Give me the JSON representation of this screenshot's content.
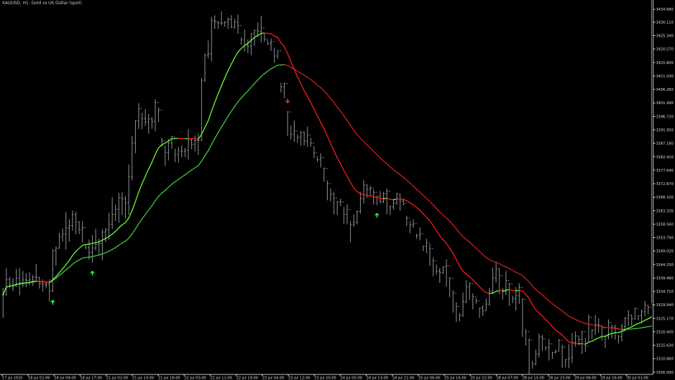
{
  "title": "XAUUSD, H1:  Gold vs US Dollar (spot)",
  "colors": {
    "background": "#000000",
    "candle": "#8f9297",
    "axis": "#ffffff",
    "fast_ma_up": "#66ff33",
    "fast_ma_down": "#ff1a1a",
    "slow_ma_up": "#3ec93e",
    "slow_ma_down": "#d01c1c",
    "buy_arrow": "#33ff33",
    "sell_arrow": "#ff3030",
    "label": "#dddddd"
  },
  "chart_data": {
    "type": "line",
    "symbol": "XAUUSD",
    "timeframe": "H1",
    "ylim": [
      3305.31,
      3436.955
    ],
    "y_ticks": [
      "3434.680",
      "3430.110",
      "3425.340",
      "3420.570",
      "3415.800",
      "3411.030",
      "3406.260",
      "3401.490",
      "3396.720",
      "3391.950",
      "3387.180",
      "3382.410",
      "3377.640",
      "3372.870",
      "3368.100",
      "3363.330",
      "3358.560",
      "3353.790",
      "3349.020",
      "3344.250",
      "3339.480",
      "3334.710",
      "3329.940",
      "3325.170",
      "3320.400",
      "3315.630",
      "3310.860",
      "3306.090"
    ],
    "x_ticks": [
      "17 Jul 2025",
      "18 Jul 01:00",
      "18 Jul 09:00",
      "18 Jul 17:00",
      "21 Jul 02:00",
      "21 Jul 10:00",
      "21 Jul 18:00",
      "22 Jul 03:00",
      "22 Jul 11:00",
      "22 Jul 19:00",
      "23 Jul 04:00",
      "23 Jul 12:00",
      "23 Jul 20:00",
      "24 Jul 05:00",
      "24 Jul 13:00",
      "24 Jul 21:00",
      "25 Jul 06:00",
      "25 Jul 14:00",
      "25 Jul 22:00",
      "28 Jul 07:00",
      "28 Jul 15:00",
      "28 Jul 23:00",
      "29 Jul 08:00",
      "29 Jul 16:00",
      "30 Jul 01:00"
    ],
    "closes": [
      3333.5,
      3338.9,
      3337.4,
      3336.7,
      3339.4,
      3337.7,
      3338.8,
      3338.6,
      3338.8,
      3339.8,
      3339.6,
      3337.5,
      3337.2,
      3337.0,
      3334.9,
      3349.1,
      3350.0,
      3354.1,
      3355.0,
      3357.2,
      3358.0,
      3361.9,
      3359.3,
      3356.7,
      3357.3,
      3350.2,
      3348.5,
      3350.1,
      3351.4,
      3351.7,
      3355.7,
      3356.5,
      3358.5,
      3362.0,
      3363.8,
      3367.9,
      3367.5,
      3366.1,
      3375.3,
      3387.3,
      3395.1,
      3399.5,
      3395.9,
      3394.7,
      3395.8,
      3394.9,
      3401.7,
      3398.9,
      3388.0,
      3383.9,
      3387.3,
      3389.5,
      3383.2,
      3384.6,
      3384.3,
      3384.7,
      3388.4,
      3386.8,
      3388.2,
      3388.2,
      3409.5,
      3418.5,
      3418.9,
      3430.6,
      3430.3,
      3429.8,
      3429.8,
      3430.2,
      3431.1,
      3428.4,
      3430.1,
      3428.9,
      3423.8,
      3422.0,
      3421.6,
      3426.0,
      3427.2,
      3426.8,
      3428.0,
      3424.1,
      3422.6,
      3423.2,
      3418.1,
      3420.0,
      3407.2,
      3408.4,
      3398.3,
      3390.3,
      3391.5,
      3389.3,
      3391.1,
      3388.0,
      3390.1,
      3387.2,
      3383.8,
      3381.4,
      3382.1,
      3378.2,
      3372.9,
      3369.2,
      3367.8,
      3366.4,
      3366.4,
      3362.1,
      3363.7,
      3358.4,
      3359.2,
      3363.0,
      3367.6,
      3372.4,
      3370.9,
      3371.3,
      3369.8,
      3368.4,
      3366.5,
      3369.3,
      3370.2,
      3364.7,
      3366.0,
      3369.2,
      3366.7,
      3365.9,
      3360.6,
      3358.3,
      3358.7,
      3354.6,
      3355.1,
      3350.7,
      3351.9,
      3349.9,
      3345.5,
      3341.9,
      3341.3,
      3343.4,
      3343.8,
      3339.3,
      3334.1,
      3329.4,
      3326.2,
      3331.1,
      3336.4,
      3337.5,
      3332.8,
      3331.3,
      3328.8,
      3327.8,
      3330.2,
      3334.8,
      3339.5,
      3342.7,
      3340.3,
      3334.7,
      3338.6,
      3337.4,
      3332.1,
      3333.2,
      3336.1,
      3331.9,
      3320.5,
      3317.5,
      3309.0,
      3312.5,
      3318.6,
      3317.9,
      3314.9,
      3316.1,
      3313.1,
      3313.5,
      3317.4,
      3315.0,
      3310.6,
      3311.1,
      3316.6,
      3318.9,
      3317.7,
      3320.4,
      3315.3,
      3325.5,
      3321.0,
      3323.0,
      3322.7,
      3321.8,
      3318.8,
      3323.7,
      3322.1,
      3321.7,
      3318.7,
      3322.2,
      3325.2,
      3326.3,
      3325.0,
      3328.6,
      3326.1,
      3327.5,
      3329.8,
      3329.1,
      3330.0
    ],
    "highs": [
      3335.9,
      3343.0,
      3339.8,
      3339.3,
      3342.6,
      3342.9,
      3341.9,
      3341.1,
      3341.6,
      3340.5,
      3344.5,
      3339.8,
      3339.0,
      3338.3,
      3339.0,
      3349.6,
      3350.6,
      3355.4,
      3357.0,
      3362.8,
      3360.2,
      3363.4,
      3362.9,
      3359.6,
      3359.6,
      3351.4,
      3353.1,
      3354.7,
      3356.9,
      3353.4,
      3356.8,
      3357.1,
      3362.6,
      3368.1,
      3365.5,
      3369.7,
      3369.8,
      3368.5,
      3379.7,
      3389.8,
      3395.4,
      3401.4,
      3398.0,
      3399.3,
      3397.6,
      3396.5,
      3402.8,
      3399.9,
      3389.1,
      3386.4,
      3388.7,
      3389.8,
      3385.3,
      3386.0,
      3386.5,
      3385.6,
      3392.2,
      3389.0,
      3390.0,
      3390.6,
      3410.3,
      3418.9,
      3423.6,
      3432.0,
      3432.5,
      3430.5,
      3433.9,
      3430.4,
      3431.8,
      3432.6,
      3431.3,
      3432.8,
      3424.7,
      3427.5,
      3423.9,
      3426.2,
      3427.4,
      3430.0,
      3432.4,
      3426.1,
      3423.7,
      3424.3,
      3421.0,
      3420.2,
      3408.6,
      3408.7,
      3398.6,
      3393.5,
      3395.3,
      3390.3,
      3391.6,
      3391.4,
      3393.1,
      3389.0,
      3386.2,
      3382.6,
      3383.7,
      3378.7,
      3374.0,
      3371.2,
      3369.8,
      3366.7,
      3367.6,
      3364.6,
      3365.6,
      3359.6,
      3362.0,
      3363.4,
      3370.0,
      3374.2,
      3372.7,
      3372.2,
      3370.8,
      3368.6,
      3370.3,
      3370.0,
      3371.1,
      3365.1,
      3367.3,
      3369.7,
      3369.3,
      3367.6,
      3361.5,
      3359.6,
      3360.2,
      3355.1,
      3357.4,
      3350.9,
      3353.4,
      3351.5,
      3346.8,
      3344.3,
      3343.0,
      3343.7,
      3346.1,
      3339.7,
      3335.1,
      3330.9,
      3327.1,
      3334.3,
      3338.7,
      3337.9,
      3334.0,
      3332.4,
      3329.0,
      3329.8,
      3332.2,
      3336.0,
      3343.2,
      3345.3,
      3343.0,
      3335.9,
      3341.9,
      3337.7,
      3333.2,
      3336.2,
      3337.6,
      3332.3,
      3321.4,
      3318.0,
      3310.1,
      3314.1,
      3319.7,
      3319.3,
      3315.2,
      3317.9,
      3313.3,
      3314.2,
      3317.8,
      3315.8,
      3310.7,
      3316.0,
      3320.0,
      3320.5,
      3318.7,
      3320.8,
      3318.2,
      3326.5,
      3321.4,
      3326.3,
      3325.2,
      3322.3,
      3319.0,
      3324.8,
      3322.9,
      3322.9,
      3319.3,
      3323.2,
      3325.6,
      3328.1,
      3326.4,
      3329.0,
      3326.2,
      3328.3,
      3331.4,
      3329.7,
      3330.6
    ],
    "lows": [
      3325.3,
      3333.3,
      3335.8,
      3334.8,
      3336.3,
      3333.3,
      3336.2,
      3336.2,
      3336.9,
      3336.7,
      3338.0,
      3335.7,
      3334.7,
      3335.9,
      3331.1,
      3334.5,
      3343.8,
      3349.8,
      3352.4,
      3349.5,
      3352.3,
      3356.2,
      3354.9,
      3355.0,
      3352.0,
      3349.6,
      3345.9,
      3344.8,
      3349.3,
      3347.8,
      3345.8,
      3352.2,
      3353.0,
      3356.8,
      3359.6,
      3359.0,
      3361.7,
      3360.5,
      3361.9,
      3374.0,
      3383.7,
      3392.2,
      3392.2,
      3393.3,
      3390.6,
      3392.3,
      3391.5,
      3394.7,
      3386.0,
      3379.1,
      3381.1,
      3385.3,
      3380.5,
      3380.3,
      3382.2,
      3382.3,
      3381.4,
      3385.1,
      3384.3,
      3383.1,
      3388.0,
      3409.0,
      3417.3,
      3416.2,
      3427.7,
      3427.7,
      3429.0,
      3428.5,
      3427.7,
      3427.9,
      3427.8,
      3426.0,
      3422.1,
      3419.7,
      3419.1,
      3418.4,
      3421.7,
      3424.8,
      3422.9,
      3423.2,
      3422.0,
      3419.9,
      3415.6,
      3417.1,
      3405.2,
      3403.2,
      3389.7,
      3388.6,
      3387.8,
      3387.3,
      3386.4,
      3386.4,
      3385.9,
      3386.0,
      3381.9,
      3380.6,
      3378.6,
      3373.6,
      3367.0,
      3366.6,
      3362.0,
      3361.7,
      3364.9,
      3358.7,
      3358.5,
      3352.1,
      3357.6,
      3358.4,
      3362.3,
      3365.8,
      3367.8,
      3368.7,
      3365.5,
      3365.3,
      3365.9,
      3366.0,
      3362.0,
      3361.7,
      3363.6,
      3365.4,
      3363.3,
      3365.2,
      3357.9,
      3355.3,
      3357.3,
      3353.3,
      3352.8,
      3349.0,
      3348.2,
      3343.8,
      3340.0,
      3340.6,
      3337.7,
      3340.9,
      3336.4,
      3332.6,
      3327.2,
      3323.9,
      3324.1,
      3325.7,
      3330.5,
      3331.7,
      3328.3,
      3330.3,
      3325.3,
      3326.0,
      3327.9,
      3329.6,
      3333.7,
      3337.8,
      3333.7,
      3331.8,
      3333.5,
      3329.6,
      3330.5,
      3327.9,
      3330.3,
      3318.6,
      3315.5,
      3305.4,
      3307.3,
      3308.6,
      3311.3,
      3313.7,
      3313.8,
      3310.2,
      3310.8,
      3312.7,
      3313.4,
      3307.6,
      3307.8,
      3307.5,
      3309.4,
      3315.1,
      3316.1,
      3312.5,
      3313.3,
      3316.9,
      3317.8,
      3319.2,
      3320.1,
      3317.3,
      3314.6,
      3317.7,
      3318.1,
      3317.6,
      3316.3,
      3317.0,
      3320.6,
      3322.5,
      3322.6,
      3324.7,
      3324.5,
      3323.4,
      3326.0,
      3326.6
    ],
    "fast_ma_period": 21,
    "slow_ma_period": 50,
    "signals": [
      {
        "type": "buy",
        "bar": 15
      },
      {
        "type": "buy",
        "bar": 27
      },
      {
        "type": "sell",
        "bar": 86
      },
      {
        "type": "buy",
        "bar": 113
      }
    ]
  }
}
